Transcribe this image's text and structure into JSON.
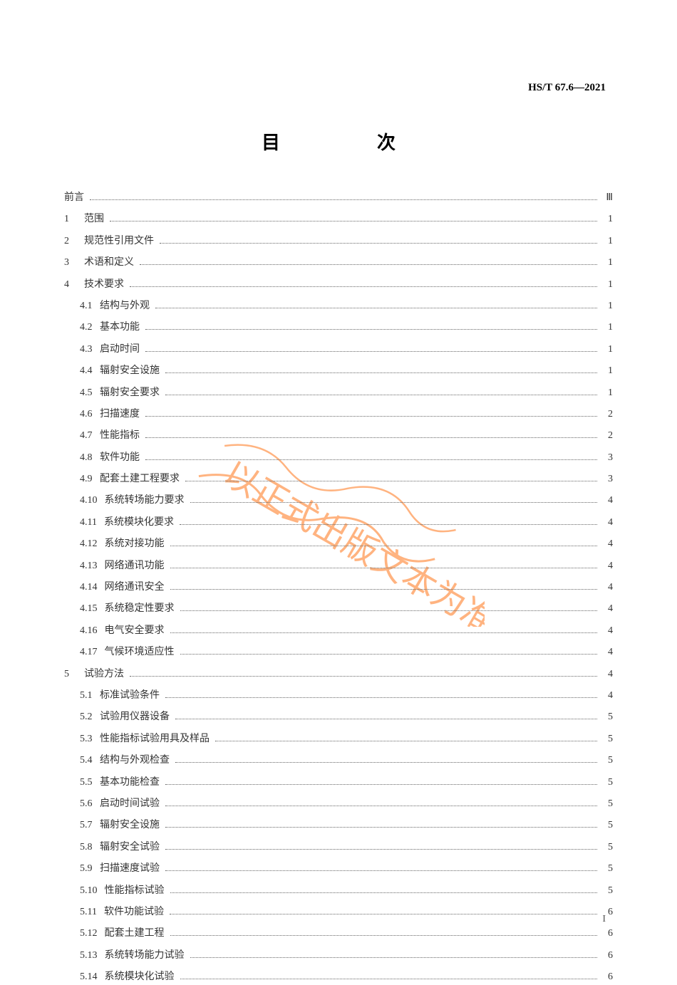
{
  "header": {
    "standard_code": "HS/T 67.6—2021"
  },
  "title": "目　　次",
  "page_number": "I",
  "watermark": {
    "text": "以正式出版文本为准",
    "color": "#ff8c3d",
    "opacity": 0.65,
    "rotation": 30
  },
  "toc": {
    "entries": [
      {
        "num": "",
        "subnum": "",
        "label": "前言",
        "page": "Ⅲ",
        "level": 0
      },
      {
        "num": "1",
        "subnum": "",
        "label": "范围",
        "page": "1",
        "level": 1
      },
      {
        "num": "2",
        "subnum": "",
        "label": "规范性引用文件",
        "page": "1",
        "level": 1
      },
      {
        "num": "3",
        "subnum": "",
        "label": "术语和定义",
        "page": "1",
        "level": 1
      },
      {
        "num": "4",
        "subnum": "",
        "label": "技术要求",
        "page": "1",
        "level": 1
      },
      {
        "num": "",
        "subnum": "4.1",
        "label": "结构与外观",
        "page": "1",
        "level": 2
      },
      {
        "num": "",
        "subnum": "4.2",
        "label": "基本功能",
        "page": "1",
        "level": 2
      },
      {
        "num": "",
        "subnum": "4.3",
        "label": "启动时间",
        "page": "1",
        "level": 2
      },
      {
        "num": "",
        "subnum": "4.4",
        "label": "辐射安全设施",
        "page": "1",
        "level": 2
      },
      {
        "num": "",
        "subnum": "4.5",
        "label": "辐射安全要求",
        "page": "1",
        "level": 2
      },
      {
        "num": "",
        "subnum": "4.6",
        "label": "扫描速度",
        "page": "2",
        "level": 2
      },
      {
        "num": "",
        "subnum": "4.7",
        "label": "性能指标",
        "page": "2",
        "level": 2
      },
      {
        "num": "",
        "subnum": "4.8",
        "label": "软件功能",
        "page": "3",
        "level": 2
      },
      {
        "num": "",
        "subnum": "4.9",
        "label": "配套土建工程要求",
        "page": "3",
        "level": 2
      },
      {
        "num": "",
        "subnum": "4.10",
        "label": "系统转场能力要求",
        "page": "4",
        "level": 2
      },
      {
        "num": "",
        "subnum": "4.11",
        "label": "系统模块化要求",
        "page": "4",
        "level": 2
      },
      {
        "num": "",
        "subnum": "4.12",
        "label": "系统对接功能",
        "page": "4",
        "level": 2
      },
      {
        "num": "",
        "subnum": "4.13",
        "label": "网络通讯功能",
        "page": "4",
        "level": 2
      },
      {
        "num": "",
        "subnum": "4.14",
        "label": "网络通讯安全",
        "page": "4",
        "level": 2
      },
      {
        "num": "",
        "subnum": "4.15",
        "label": "系统稳定性要求",
        "page": "4",
        "level": 2
      },
      {
        "num": "",
        "subnum": "4.16",
        "label": "电气安全要求",
        "page": "4",
        "level": 2
      },
      {
        "num": "",
        "subnum": "4.17",
        "label": "气候环境适应性",
        "page": "4",
        "level": 2
      },
      {
        "num": "5",
        "subnum": "",
        "label": "试验方法",
        "page": "4",
        "level": 1
      },
      {
        "num": "",
        "subnum": "5.1",
        "label": "标准试验条件",
        "page": "4",
        "level": 2
      },
      {
        "num": "",
        "subnum": "5.2",
        "label": "试验用仪器设备",
        "page": "5",
        "level": 2
      },
      {
        "num": "",
        "subnum": "5.3",
        "label": "性能指标试验用具及样品",
        "page": "5",
        "level": 2
      },
      {
        "num": "",
        "subnum": "5.4",
        "label": "结构与外观检查",
        "page": "5",
        "level": 2
      },
      {
        "num": "",
        "subnum": "5.5",
        "label": "基本功能检查",
        "page": "5",
        "level": 2
      },
      {
        "num": "",
        "subnum": "5.6",
        "label": "启动时间试验",
        "page": "5",
        "level": 2
      },
      {
        "num": "",
        "subnum": "5.7",
        "label": "辐射安全设施",
        "page": "5",
        "level": 2
      },
      {
        "num": "",
        "subnum": "5.8",
        "label": "辐射安全试验",
        "page": "5",
        "level": 2
      },
      {
        "num": "",
        "subnum": "5.9",
        "label": "扫描速度试验",
        "page": "5",
        "level": 2
      },
      {
        "num": "",
        "subnum": "5.10",
        "label": "性能指标试验",
        "page": "5",
        "level": 2
      },
      {
        "num": "",
        "subnum": "5.11",
        "label": "软件功能试验",
        "page": "6",
        "level": 2
      },
      {
        "num": "",
        "subnum": "5.12",
        "label": "配套土建工程",
        "page": "6",
        "level": 2
      },
      {
        "num": "",
        "subnum": "5.13",
        "label": "系统转场能力试验",
        "page": "6",
        "level": 2
      },
      {
        "num": "",
        "subnum": "5.14",
        "label": "系统模块化试验",
        "page": "6",
        "level": 2
      }
    ]
  }
}
